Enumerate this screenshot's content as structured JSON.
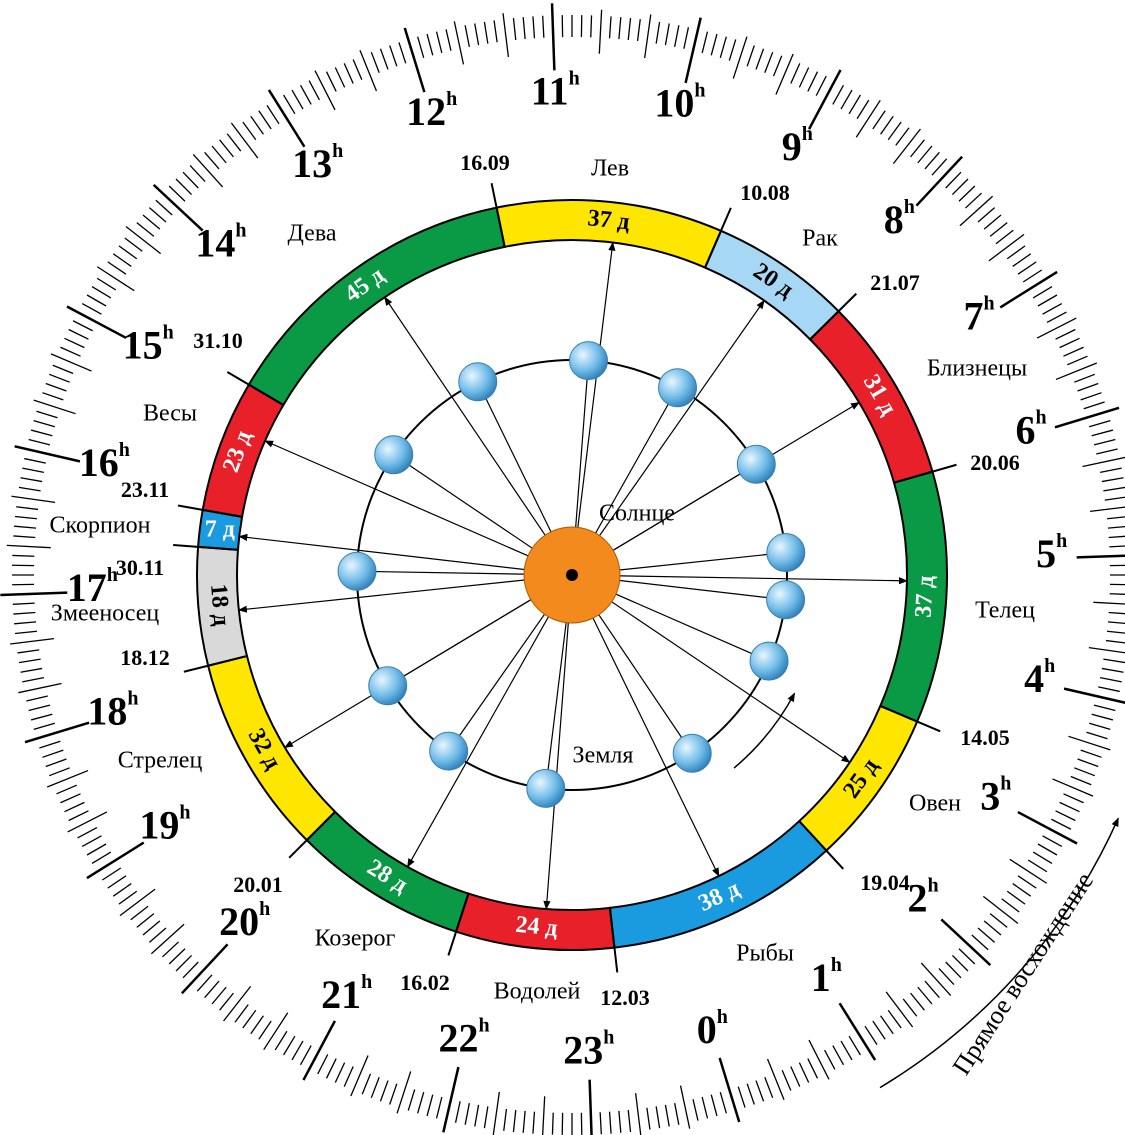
{
  "segments": [
    {
      "name": "Овен",
      "days": "25 д",
      "start_date": "19.04",
      "color": "#ffe600"
    },
    {
      "name": "Телец",
      "days": "37 д",
      "start_date": "14.05",
      "color": "#0a9a45"
    },
    {
      "name": "Близнецы",
      "days": "31 д",
      "start_date": "20.06",
      "color": "#e8202a"
    },
    {
      "name": "Рак",
      "days": "20 д",
      "start_date": "21.07",
      "color": "#a6d8f5"
    },
    {
      "name": "Лев",
      "days": "37 д",
      "start_date": "10.08",
      "color": "#ffe600"
    },
    {
      "name": "Дева",
      "days": "45 д",
      "start_date": "16.09",
      "color": "#0a9a45"
    },
    {
      "name": "Весы",
      "days": "23 д",
      "start_date": "31.10",
      "color": "#e8202a"
    },
    {
      "name": "Скорпион",
      "days": "7 д",
      "start_date": "23.11",
      "color": "#1a9be0"
    },
    {
      "name": "Змееносец",
      "days": "18 д",
      "start_date": "30.11",
      "color": "#d9d9d9"
    },
    {
      "name": "Стрелец",
      "days": "32 д",
      "start_date": "18.12",
      "color": "#ffe600"
    },
    {
      "name": "Козерог",
      "days": "28 д",
      "start_date": "20.01",
      "color": "#0a9a45"
    },
    {
      "name": "Водолей",
      "days": "24 д",
      "start_date": "16.02",
      "color": "#e8202a"
    },
    {
      "name": "Рыбы",
      "days": "38 д",
      "start_date": "12.03",
      "color": "#1a9be0"
    }
  ],
  "sun_label": "Солнце",
  "earth_label": "Земля",
  "hours": [
    "0",
    "1",
    "2",
    "3",
    "4",
    "5",
    "6",
    "7",
    "8",
    "9",
    "10",
    "11",
    "12",
    "13",
    "14",
    "15",
    "16",
    "17",
    "18",
    "19",
    "20",
    "21",
    "22",
    "23"
  ],
  "hour_unit": "h",
  "axis_label": "Прямое восхождение"
}
